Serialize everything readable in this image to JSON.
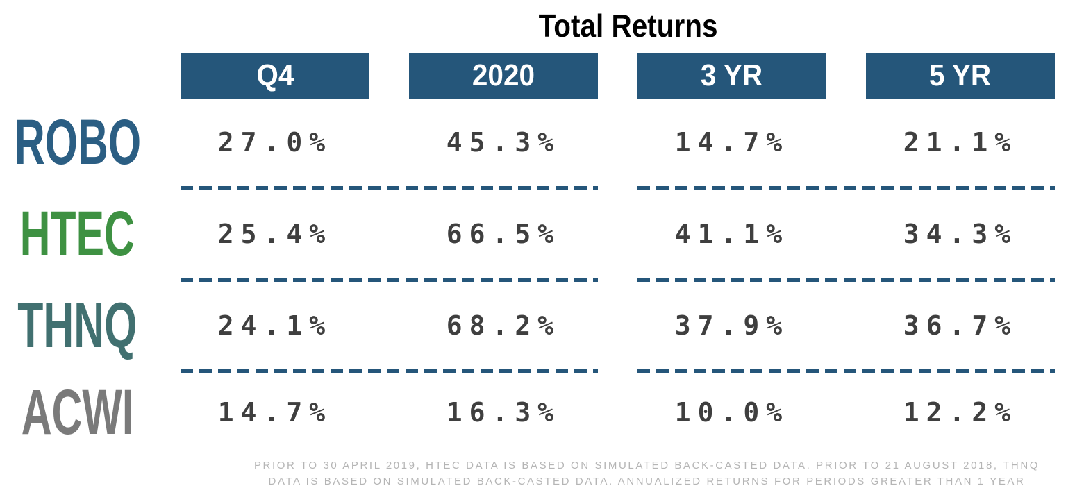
{
  "title": "Total Returns",
  "columns": [
    "Q4",
    "2020",
    "3 YR",
    "5 YR"
  ],
  "rows": [
    {
      "label": "ROBO",
      "color": "#2B5E83",
      "values": [
        "27.0%",
        "45.3%",
        "14.7%",
        "21.1%"
      ]
    },
    {
      "label": "HTEC",
      "color": "#3E9142",
      "values": [
        "25.4%",
        "66.5%",
        "41.1%",
        "34.3%"
      ]
    },
    {
      "label": "THNQ",
      "color": "#417070",
      "values": [
        "24.1%",
        "68.2%",
        "37.9%",
        "36.7%"
      ]
    },
    {
      "label": "ACWI",
      "color": "#7A7A7A",
      "values": [
        "14.7%",
        "16.3%",
        "10.0%",
        "12.2%"
      ]
    }
  ],
  "footnote_line1": "PRIOR TO 30 APRIL 2019, HTEC DATA IS BASED ON SIMULATED BACK-CASTED DATA. PRIOR TO 21 AUGUST 2018, THNQ",
  "footnote_line2": "DATA IS BASED ON SIMULATED BACK-CASTED DATA. ANNUALIZED RETURNS FOR PERIODS GREATER THAN 1 YEAR",
  "colors": {
    "accent": "#25567A",
    "header_text": "#FFFFFF",
    "value_text": "#3F3F3F",
    "footnote_text": "#B5B5B5"
  },
  "chart_data": {
    "type": "table",
    "title": "Total Returns",
    "categories": [
      "Q4",
      "2020",
      "3 YR",
      "5 YR"
    ],
    "series": [
      {
        "name": "ROBO",
        "values": [
          27.0,
          45.3,
          14.7,
          21.1
        ]
      },
      {
        "name": "HTEC",
        "values": [
          25.4,
          66.5,
          41.1,
          34.3
        ]
      },
      {
        "name": "THNQ",
        "values": [
          24.1,
          68.2,
          37.9,
          36.7
        ]
      },
      {
        "name": "ACWI",
        "values": [
          14.7,
          16.3,
          10.0,
          12.2
        ]
      }
    ],
    "unit": "%",
    "footnote": "PRIOR TO 30 APRIL 2019, HTEC DATA IS BASED ON SIMULATED BACK-CASTED DATA. PRIOR TO 21 AUGUST 2018, THNQ DATA IS BASED ON SIMULATED BACK-CASTED DATA. ANNUALIZED RETURNS FOR PERIODS GREATER THAN 1 YEAR"
  }
}
